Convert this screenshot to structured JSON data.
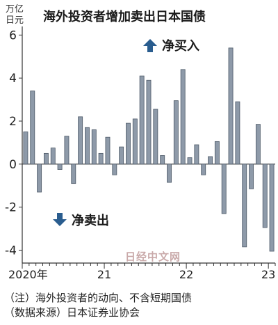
{
  "unit": {
    "line1": "万亿",
    "line2": "日元"
  },
  "title": "海外投资者增加卖出日本国债",
  "legend": {
    "buy": {
      "label": "净买入",
      "icon": "up-arrow-icon"
    },
    "sell": {
      "label": "净卖出",
      "icon": "down-arrow-icon"
    }
  },
  "watermark": "日经中文网",
  "notes": {
    "line1": "（注）海外投资者的动向、不含短期国债",
    "line2": "（数据来源）日本证券业协会"
  },
  "colors": {
    "bar": "#8e9aa9",
    "bar_stroke": "#4f5b69",
    "axis": "#333333",
    "text": "#222222"
  },
  "chart_data": {
    "type": "bar",
    "title": "海外投资者增加卖出日本国债",
    "ylabel": "万亿日元",
    "ylim": [
      -4.6,
      6.4
    ],
    "yticks": [
      {
        "value": 6,
        "label": "6"
      },
      {
        "value": 4,
        "label": "4"
      },
      {
        "value": 2,
        "label": "2"
      },
      {
        "value": 0,
        "label": "0"
      },
      {
        "value": -2,
        "label": "-2"
      },
      {
        "value": -4,
        "label": "-4"
      }
    ],
    "xtick_labels": [
      {
        "index": 0,
        "label": "2020年"
      },
      {
        "index": 12,
        "label": "21"
      },
      {
        "index": 24,
        "label": "22"
      },
      {
        "index": 36,
        "label": "23"
      }
    ],
    "categories": [
      "2020-01",
      "2020-02",
      "2020-03",
      "2020-04",
      "2020-05",
      "2020-06",
      "2020-07",
      "2020-08",
      "2020-09",
      "2020-10",
      "2020-11",
      "2020-12",
      "2021-01",
      "2021-02",
      "2021-03",
      "2021-04",
      "2021-05",
      "2021-06",
      "2021-07",
      "2021-08",
      "2021-09",
      "2021-10",
      "2021-11",
      "2021-12",
      "2022-01",
      "2022-02",
      "2022-03",
      "2022-04",
      "2022-05",
      "2022-06",
      "2022-07",
      "2022-08",
      "2022-09",
      "2022-10",
      "2022-11",
      "2022-12",
      "2023-01"
    ],
    "values": [
      1.5,
      3.4,
      -1.3,
      0.5,
      0.75,
      -0.25,
      1.3,
      -0.9,
      2.2,
      1.7,
      1.6,
      0.5,
      1.25,
      -0.5,
      0.8,
      1.9,
      2.1,
      4.1,
      3.9,
      2.55,
      0.4,
      -0.85,
      2.95,
      4.4,
      0.3,
      0.9,
      -0.5,
      0.35,
      1.05,
      -2.3,
      5.4,
      2.9,
      -3.85,
      -1.15,
      1.85,
      -2.95,
      -4.05
    ]
  }
}
